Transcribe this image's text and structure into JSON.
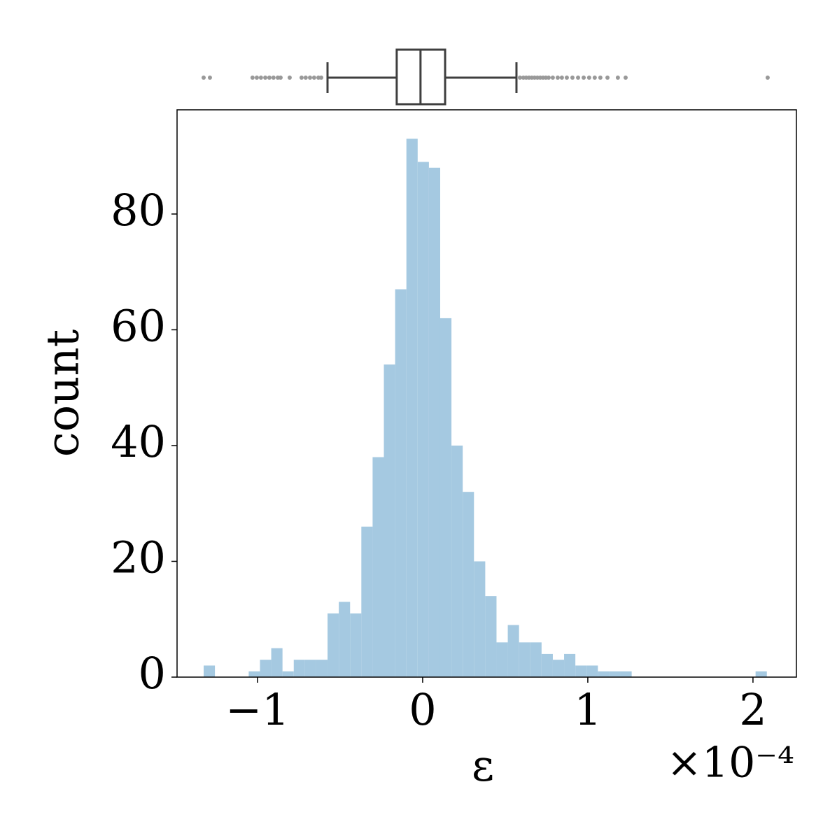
{
  "chart_data": [
    {
      "type": "boxplot",
      "xlim": [
        -1.487,
        2.263
      ],
      "q1": -0.157,
      "median": -0.013,
      "q3": 0.136,
      "whislo": -0.576,
      "whishi": 0.568,
      "outliers": [
        -1.326,
        -1.288,
        -1.03,
        -1.004,
        -0.979,
        -0.953,
        -0.928,
        -0.903,
        -0.877,
        -0.86,
        -0.805,
        -0.733,
        -0.708,
        -0.682,
        -0.657,
        -0.631,
        -0.614,
        0.589,
        0.61,
        0.627,
        0.644,
        0.661,
        0.678,
        0.695,
        0.712,
        0.729,
        0.746,
        0.763,
        0.788,
        0.818,
        0.843,
        0.873,
        0.907,
        0.941,
        0.975,
        1.008,
        1.042,
        1.076,
        1.119,
        1.182,
        1.229,
        2.089
      ],
      "color": "#3f3f3f",
      "outlier_color": "#999999"
    },
    {
      "type": "histogram",
      "xlabel": "ε",
      "x_offset_label": "×10⁻⁴",
      "ylabel": "count",
      "bins": [
        -1.326,
        -1.2578,
        -1.1896,
        -1.1214,
        -1.0532,
        -0.985,
        -0.9168,
        -0.8486,
        -0.7804,
        -0.7122,
        -0.644,
        -0.5758,
        -0.5076,
        -0.4394,
        -0.3712,
        -0.303,
        -0.2348,
        -0.1666,
        -0.0984,
        -0.0302,
        0.038,
        0.1062,
        0.1744,
        0.2426,
        0.3108,
        0.379,
        0.4472,
        0.5154,
        0.5836,
        0.6518,
        0.72,
        0.7882,
        0.8564,
        0.9246,
        0.9928,
        1.061,
        1.1292,
        1.1974,
        1.2656,
        1.3338,
        1.402,
        1.4702,
        1.5384,
        1.6066,
        1.6748,
        1.743,
        1.8112,
        1.8794,
        1.9476,
        2.0158,
        2.084
      ],
      "counts": [
        2,
        0,
        0,
        0,
        1,
        3,
        5,
        1,
        3,
        3,
        3,
        11,
        13,
        11,
        26,
        38,
        54,
        67,
        93,
        89,
        88,
        62,
        40,
        32,
        20,
        14,
        6,
        9,
        6,
        6,
        4,
        3,
        4,
        2,
        2,
        1,
        1,
        1,
        0,
        0,
        0,
        0,
        0,
        0,
        0,
        0,
        0,
        0,
        0,
        1
      ],
      "color": "#a5c9e1",
      "xlim": [
        -1.487,
        2.263
      ],
      "ylim": [
        0,
        98
      ],
      "xticks": [
        {
          "value": -1,
          "label": "−1"
        },
        0,
        1,
        2
      ],
      "yticks": [
        0,
        20,
        40,
        60,
        80
      ]
    }
  ]
}
